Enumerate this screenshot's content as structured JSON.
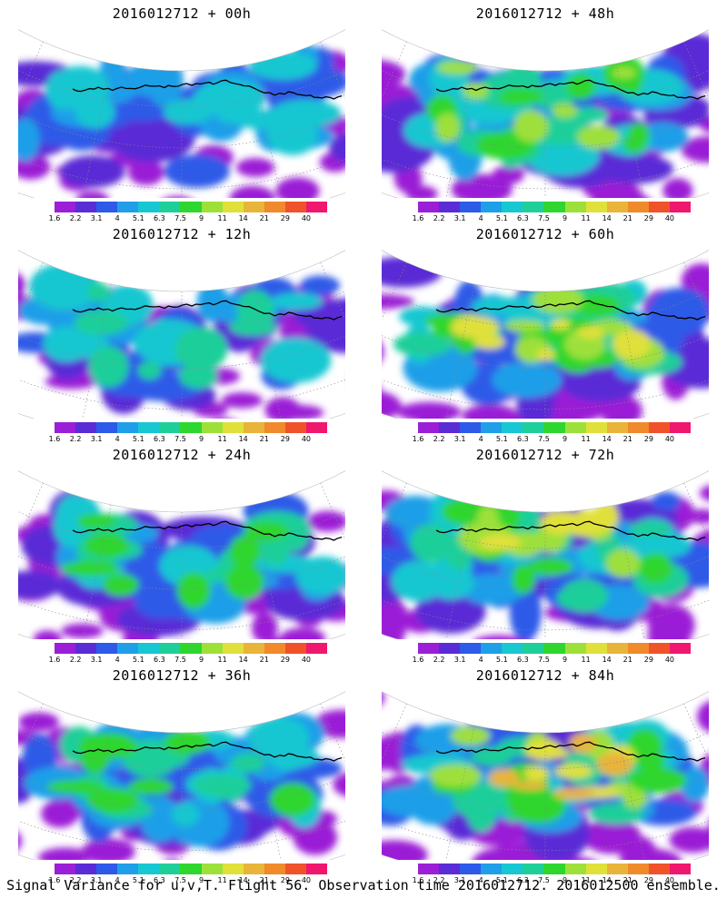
{
  "colors": {
    "scale": [
      "#9b1fd6",
      "#5a2cd6",
      "#2d5ae8",
      "#1f9fe8",
      "#17c7d1",
      "#1fcf9a",
      "#2fd62f",
      "#9ee03a",
      "#e0e03a",
      "#e8b43a",
      "#f08a2a",
      "#f0522a",
      "#f0186e"
    ],
    "coastline": "#000000",
    "grid": "#888888",
    "background": "#ffffff"
  },
  "colorbar_labels": [
    "1.6",
    "2.2",
    "3.1",
    "4",
    "5.1",
    "6.3",
    "7.5",
    "9",
    "11",
    "14",
    "21",
    "29",
    "40"
  ],
  "panels": [
    {
      "title": "2016012712 + 00h",
      "level": 0.15
    },
    {
      "title": "2016012712 + 48h",
      "level": 0.55
    },
    {
      "title": "2016012712 + 12h",
      "level": 0.25
    },
    {
      "title": "2016012712 + 60h",
      "level": 0.62
    },
    {
      "title": "2016012712 + 24h",
      "level": 0.32
    },
    {
      "title": "2016012712 + 72h",
      "level": 0.68
    },
    {
      "title": "2016012712 + 36h",
      "level": 0.4
    },
    {
      "title": "2016012712 + 84h",
      "level": 0.72
    }
  ],
  "footer": "Signal Variance for u,v,T. Flight 56. Observation time 2016012712. 2016012500 ensemble."
}
